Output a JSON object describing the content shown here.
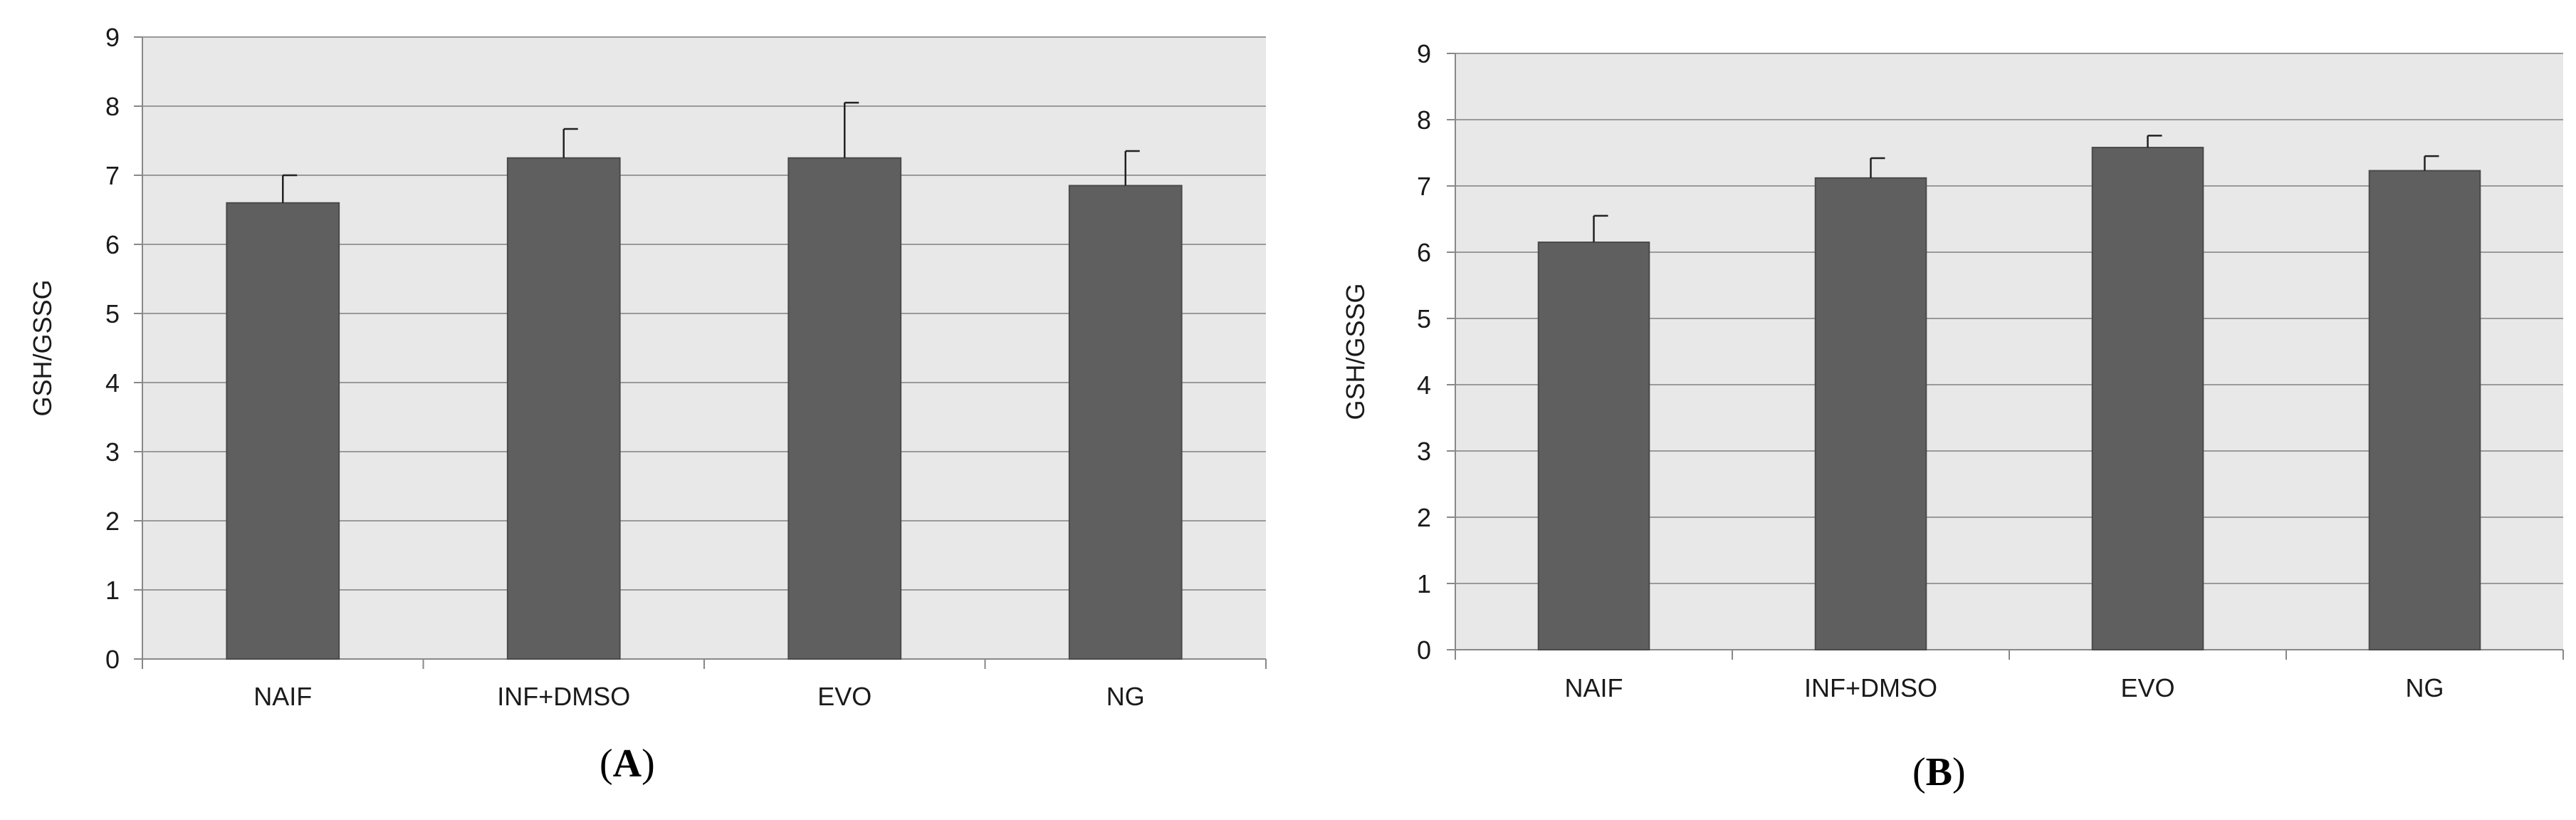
{
  "colors": {
    "plot_background": "#e8e8e8",
    "gridline": "#9a9a9a",
    "bar_fill": "#5f5f5f",
    "bar_stroke": "#4a4a4a",
    "axis": "#888888",
    "text": "#1a1a1a"
  },
  "chart_data": [
    {
      "panel": "A",
      "type": "bar",
      "ylabel": "GSH/GSSG",
      "ylim": [
        0,
        9
      ],
      "yticks": [
        "0",
        "1",
        "2",
        "3",
        "4",
        "5",
        "6",
        "7",
        "8",
        "9"
      ],
      "grid": true,
      "categories": [
        "NAIF",
        "INF+DMSO",
        "EVO",
        "NG"
      ],
      "values": [
        6.6,
        7.25,
        7.25,
        6.85
      ],
      "errors": [
        0.4,
        0.42,
        0.8,
        0.5
      ],
      "label_open": "(",
      "label_letter": "A",
      "label_close": ")"
    },
    {
      "panel": "B",
      "type": "bar",
      "ylabel": "GSH/GSSG",
      "ylim": [
        0,
        9
      ],
      "yticks": [
        "0",
        "1",
        "2",
        "3",
        "4",
        "5",
        "6",
        "7",
        "8",
        "9"
      ],
      "grid": true,
      "categories": [
        "NAIF",
        "INF+DMSO",
        "EVO",
        "NG"
      ],
      "values": [
        6.15,
        7.12,
        7.58,
        7.23
      ],
      "errors": [
        0.4,
        0.3,
        0.18,
        0.22
      ],
      "label_open": "(",
      "label_letter": "B",
      "label_close": ")"
    }
  ]
}
